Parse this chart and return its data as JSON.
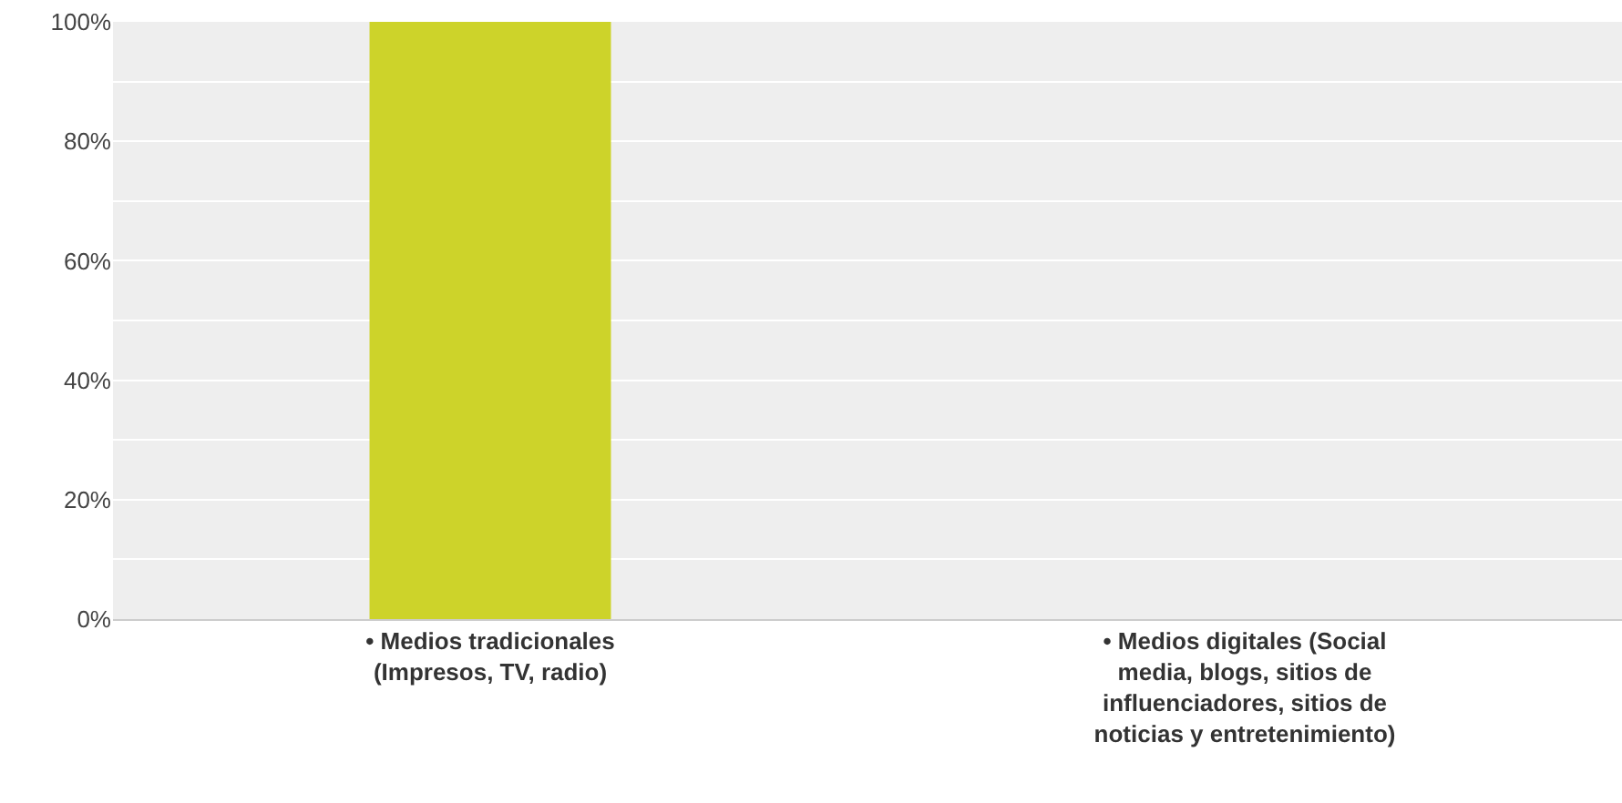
{
  "chart_data": {
    "type": "bar",
    "categories": [
      "• Medios tradicionales (Impresos, TV, radio)",
      "• Medios digitales (Social media, blogs, sitios de influenciadores, sitios de noticias y entretenimiento)"
    ],
    "values": [
      100,
      0
    ],
    "color": "#cdd32a",
    "ylim": [
      0,
      100
    ],
    "yticks": [
      {
        "value": 0,
        "label": "0%"
      },
      {
        "value": 10,
        "label": null
      },
      {
        "value": 20,
        "label": "20%"
      },
      {
        "value": 30,
        "label": null
      },
      {
        "value": 40,
        "label": "40%"
      },
      {
        "value": 50,
        "label": null
      },
      {
        "value": 60,
        "label": "60%"
      },
      {
        "value": 70,
        "label": null
      },
      {
        "value": 80,
        "label": "80%"
      },
      {
        "value": 90,
        "label": null
      },
      {
        "value": 100,
        "label": "100%"
      }
    ],
    "grid": true
  }
}
